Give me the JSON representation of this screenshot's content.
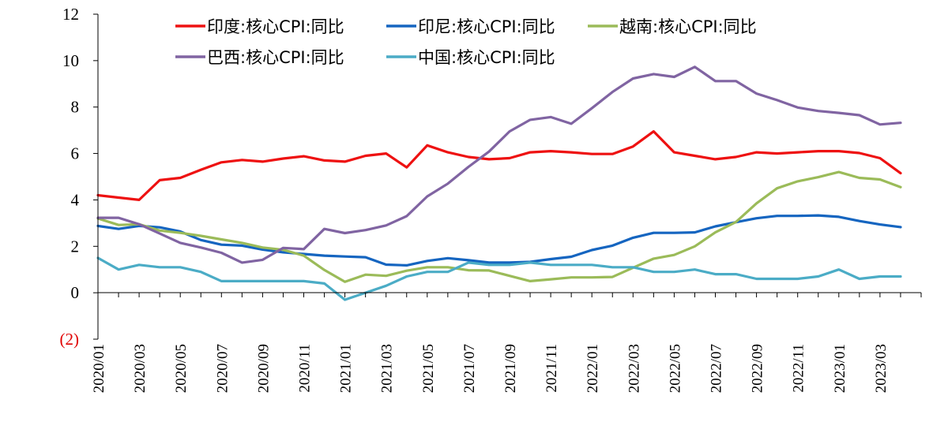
{
  "chart_data": {
    "type": "line",
    "title": "",
    "xlabel": "",
    "ylabel": "",
    "ylim": [
      -2,
      12
    ],
    "y_ticks": [
      {
        "value": -2,
        "label": "(2)",
        "color": "#e00000"
      },
      {
        "value": 0,
        "label": "0"
      },
      {
        "value": 2,
        "label": "2"
      },
      {
        "value": 4,
        "label": "4"
      },
      {
        "value": 6,
        "label": "6"
      },
      {
        "value": 8,
        "label": "8"
      },
      {
        "value": 10,
        "label": "10"
      },
      {
        "value": 12,
        "label": "12"
      }
    ],
    "x_tick_labels": [
      "2020/01",
      "2020/03",
      "2020/05",
      "2020/07",
      "2020/09",
      "2020/11",
      "2021/01",
      "2021/03",
      "2021/05",
      "2021/07",
      "2021/09",
      "2021/11",
      "2022/01",
      "2022/03",
      "2022/05",
      "2022/07",
      "2022/09",
      "2022/11",
      "2023/01",
      "2023/03"
    ],
    "grid": false,
    "legend_position": "top",
    "series": [
      {
        "name": "印度:核心CPI:同比",
        "color": "#ee1111",
        "values": [
          4.2,
          4.1,
          4.0,
          4.85,
          4.95,
          5.3,
          5.62,
          5.72,
          5.65,
          5.78,
          5.88,
          5.7,
          5.65,
          5.9,
          6.0,
          5.4,
          6.35,
          6.05,
          5.85,
          5.75,
          5.8,
          6.05,
          6.1,
          6.05,
          5.98,
          5.98,
          6.3,
          6.95,
          6.05,
          5.9,
          5.75,
          5.85,
          6.05,
          6.0,
          6.05,
          6.1,
          6.1,
          6.02,
          5.8,
          5.15
        ]
      },
      {
        "name": "印尼:核心CPI:同比",
        "color": "#1565c0",
        "values": [
          2.88,
          2.75,
          2.88,
          2.82,
          2.64,
          2.27,
          2.07,
          2.03,
          1.86,
          1.74,
          1.67,
          1.6,
          1.56,
          1.53,
          1.21,
          1.18,
          1.37,
          1.49,
          1.4,
          1.3,
          1.3,
          1.33,
          1.45,
          1.55,
          1.84,
          2.03,
          2.37,
          2.58,
          2.58,
          2.6,
          2.86,
          3.04,
          3.21,
          3.31,
          3.31,
          3.33,
          3.27,
          3.09,
          2.94,
          2.83
        ]
      },
      {
        "name": "越南:核心CPI:同比",
        "color": "#9bbb59",
        "values": [
          3.2,
          2.92,
          2.95,
          2.68,
          2.58,
          2.45,
          2.3,
          2.15,
          1.95,
          1.85,
          1.6,
          0.98,
          0.47,
          0.78,
          0.73,
          0.95,
          1.1,
          1.1,
          0.97,
          0.96,
          0.73,
          0.5,
          0.58,
          0.66,
          0.66,
          0.68,
          1.08,
          1.47,
          1.63,
          2.0,
          2.6,
          3.05,
          3.85,
          4.5,
          4.8,
          4.98,
          5.2,
          4.95,
          4.88,
          4.55
        ]
      },
      {
        "name": "巴西:核心CPI:同比",
        "color": "#8064a2",
        "values": [
          3.23,
          3.23,
          2.95,
          2.55,
          2.15,
          1.95,
          1.72,
          1.3,
          1.42,
          1.93,
          1.88,
          2.75,
          2.57,
          2.7,
          2.9,
          3.3,
          4.15,
          4.7,
          5.42,
          6.08,
          6.95,
          7.45,
          7.57,
          7.28,
          7.95,
          8.65,
          9.23,
          9.42,
          9.3,
          9.73,
          9.12,
          9.12,
          8.58,
          8.3,
          7.98,
          7.83,
          7.75,
          7.65,
          7.25,
          7.32
        ]
      },
      {
        "name": "中国:核心CPI:同比",
        "color": "#4bacc6",
        "values": [
          1.5,
          1.0,
          1.2,
          1.1,
          1.1,
          0.9,
          0.5,
          0.5,
          0.5,
          0.5,
          0.5,
          0.4,
          -0.3,
          0.0,
          0.3,
          0.7,
          0.9,
          0.9,
          1.3,
          1.2,
          1.2,
          1.3,
          1.2,
          1.2,
          1.2,
          1.1,
          1.1,
          0.9,
          0.9,
          1.0,
          0.8,
          0.8,
          0.6,
          0.6,
          0.6,
          0.7,
          1.0,
          0.6,
          0.7,
          0.7
        ]
      }
    ]
  }
}
